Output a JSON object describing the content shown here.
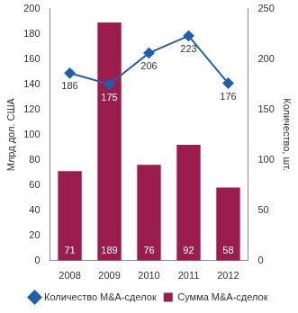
{
  "chart_data": {
    "type": "bar",
    "categories": [
      "2008",
      "2009",
      "2010",
      "2011",
      "2012"
    ],
    "series": [
      {
        "name": "Сумма M&A-сделок",
        "type": "bar",
        "color": "#9b1d4e",
        "values": [
          71,
          189,
          76,
          92,
          58
        ]
      },
      {
        "name": "Количество M&A-сделок",
        "type": "line",
        "color": "#1f5fae",
        "marker": "diamond",
        "axis": "y2",
        "values": [
          186,
          175,
          206,
          223,
          176
        ]
      }
    ],
    "y_label": "Млрд дол. США",
    "y2_label": "Количество, шт.",
    "ylim": [
      0,
      200
    ],
    "yticks": [
      0,
      20,
      40,
      60,
      80,
      100,
      120,
      140,
      160,
      180,
      200
    ],
    "y2lim": [
      0,
      250
    ],
    "y2ticks": [
      0,
      50,
      100,
      150,
      200,
      250
    ],
    "grid": false,
    "legend": "bottom",
    "data_labels": true
  }
}
